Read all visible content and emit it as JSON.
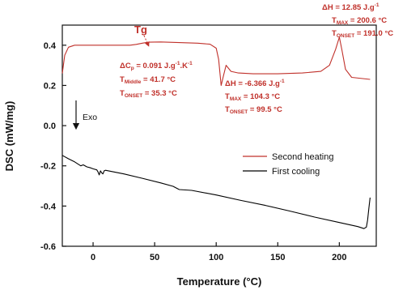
{
  "chart_data": {
    "type": "line",
    "xlabel": "Temperature (°C)",
    "ylabel": "DSC (mW/mg)",
    "xlim": [
      -25,
      230
    ],
    "ylim": [
      -0.6,
      0.5
    ],
    "x_ticks": [
      "0",
      "50",
      "100",
      "150",
      "200"
    ],
    "y_ticks": [
      "-0.6",
      "-0.4",
      "-0.2",
      "0.0",
      "0.2",
      "0.4"
    ],
    "legend_position": "center-right",
    "series": [
      {
        "name": "Second heating",
        "color": "#c0302a",
        "points": [
          [
            -25,
            0.26
          ],
          [
            -23,
            0.35
          ],
          [
            -20,
            0.39
          ],
          [
            -15,
            0.4
          ],
          [
            -5,
            0.4
          ],
          [
            10,
            0.4
          ],
          [
            20,
            0.4
          ],
          [
            30,
            0.4
          ],
          [
            35,
            0.404
          ],
          [
            40,
            0.41
          ],
          [
            45,
            0.415
          ],
          [
            55,
            0.416
          ],
          [
            70,
            0.413
          ],
          [
            85,
            0.41
          ],
          [
            95,
            0.405
          ],
          [
            100,
            0.385
          ],
          [
            102,
            0.33
          ],
          [
            104,
            0.2
          ],
          [
            106,
            0.25
          ],
          [
            108,
            0.3
          ],
          [
            112,
            0.27
          ],
          [
            118,
            0.262
          ],
          [
            130,
            0.258
          ],
          [
            150,
            0.258
          ],
          [
            170,
            0.262
          ],
          [
            185,
            0.27
          ],
          [
            192,
            0.3
          ],
          [
            197,
            0.38
          ],
          [
            200,
            0.44
          ],
          [
            202,
            0.38
          ],
          [
            205,
            0.28
          ],
          [
            210,
            0.24
          ],
          [
            225,
            0.23
          ]
        ]
      },
      {
        "name": "First cooling",
        "color": "#000000",
        "points": [
          [
            -25,
            -0.148
          ],
          [
            -20,
            -0.165
          ],
          [
            -15,
            -0.18
          ],
          [
            -10,
            -0.2
          ],
          [
            -8,
            -0.195
          ],
          [
            -5,
            -0.205
          ],
          [
            -2,
            -0.21
          ],
          [
            0,
            -0.215
          ],
          [
            3,
            -0.22
          ],
          [
            4,
            -0.23
          ],
          [
            5,
            -0.245
          ],
          [
            6,
            -0.225
          ],
          [
            7,
            -0.235
          ],
          [
            8,
            -0.24
          ],
          [
            9,
            -0.225
          ],
          [
            10,
            -0.222
          ],
          [
            15,
            -0.228
          ],
          [
            25,
            -0.24
          ],
          [
            40,
            -0.262
          ],
          [
            55,
            -0.285
          ],
          [
            65,
            -0.302
          ],
          [
            70,
            -0.318
          ],
          [
            80,
            -0.322
          ],
          [
            100,
            -0.345
          ],
          [
            120,
            -0.372
          ],
          [
            140,
            -0.397
          ],
          [
            160,
            -0.425
          ],
          [
            180,
            -0.455
          ],
          [
            200,
            -0.482
          ],
          [
            215,
            -0.502
          ],
          [
            220,
            -0.512
          ],
          [
            222,
            -0.505
          ],
          [
            223,
            -0.47
          ],
          [
            224,
            -0.41
          ],
          [
            225,
            -0.358
          ]
        ]
      }
    ],
    "annotations": {
      "tg_label": "Tg",
      "glass": {
        "line1": "ΔC",
        "line1_sub": "p",
        "line1_rest": " = 0.091 J.g",
        "line1_sup": "-1",
        "line1_rest2": ".K",
        "line1_sup2": "-1",
        "line2": "T",
        "line2_sub": "Middle",
        "line2_rest": " = 41.7 °C",
        "line3": "T",
        "line3_sub": "ONSET",
        "line3_rest": " = 35.3 °C"
      },
      "cryst": {
        "line1": "ΔH = -6.366 J.g",
        "line1_sup": "-1",
        "line2": "T",
        "line2_sub": "MAX",
        "line2_rest": " = 104.3 °C",
        "line3": "T",
        "line3_sub": "ONSET",
        "line3_rest": " = 99.5 °C"
      },
      "melt": {
        "line1": "ΔH = 12.85 J.g",
        "line1_sup": "-1",
        "line2": "T",
        "line2_sub": "MAX",
        "line2_rest": " = 200.6 °C",
        "line3": "T",
        "line3_sub": "ONSET",
        "line3_rest": " = 191.0 °C"
      },
      "exo": "Exo"
    }
  }
}
